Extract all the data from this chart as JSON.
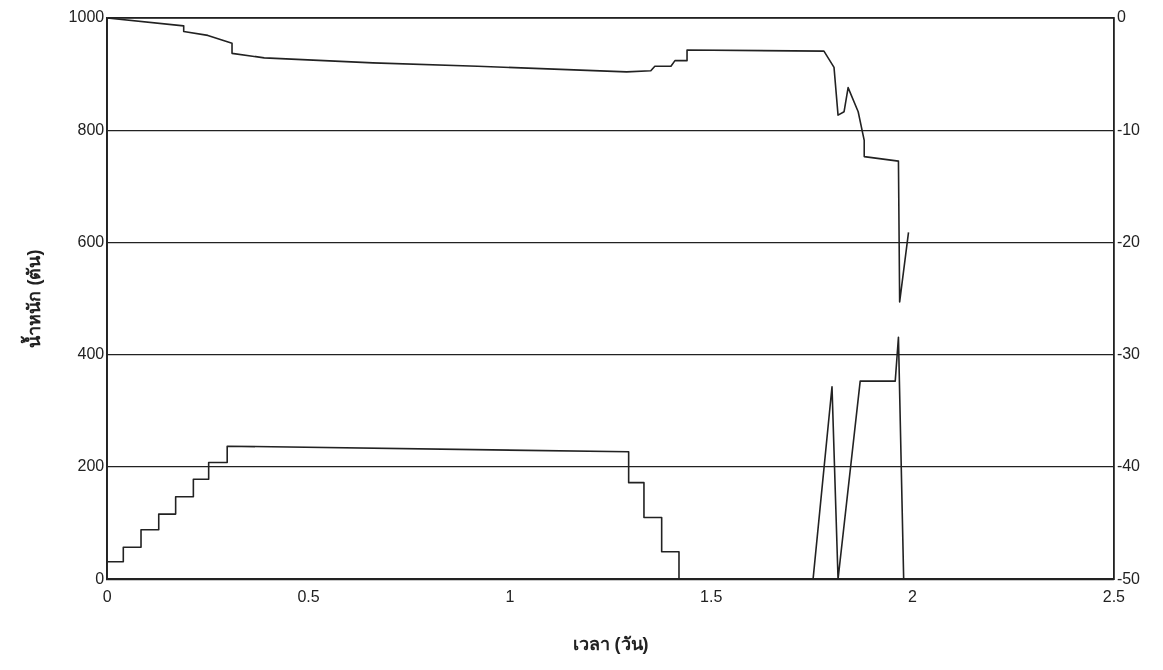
{
  "chart_data": {
    "type": "line",
    "xlabel": "เวลา (วัน)",
    "ylabel": "น้ำหนัก (ตัน)",
    "xlim": [
      0,
      2.5
    ],
    "xticks": [
      0,
      0.5,
      1,
      1.5,
      2,
      2.5
    ],
    "ylim": [
      0,
      1000
    ],
    "yticks": [
      0,
      200,
      400,
      600,
      800,
      1000
    ],
    "y2lim": [
      -50,
      0
    ],
    "y2ticks": [
      -50,
      -40,
      -30,
      -20,
      -10,
      0
    ],
    "grid": "y",
    "legend": false,
    "marker": "none",
    "line_style": "solid",
    "series": [
      {
        "color": "#222222",
        "x": [
          0,
          0.19,
          0.19,
          0.25,
          0.31,
          0.31,
          0.39,
          0.66,
          0.92,
          1.29,
          1.35,
          1.36,
          1.38,
          1.4,
          1.41,
          1.44,
          1.44,
          1.78,
          1.805,
          1.815,
          1.83,
          1.84,
          1.865,
          1.88,
          1.88,
          1.965,
          1.968,
          1.99
        ],
        "values": [
          1000,
          986,
          976,
          969,
          955,
          937,
          929,
          920,
          914,
          904,
          906,
          914,
          914,
          914,
          924,
          924,
          943,
          941,
          912,
          827,
          833,
          876,
          833,
          782,
          753,
          745,
          494,
          618
        ]
      },
      {
        "color": "#222222",
        "x": [
          0,
          0.04,
          0.04,
          0.084,
          0.084,
          0.128,
          0.128,
          0.17,
          0.17,
          0.214,
          0.214,
          0.252,
          0.252,
          0.298,
          0.298,
          1.295,
          1.295,
          1.333,
          1.333,
          1.377,
          1.377,
          1.42,
          1.42,
          1.753,
          1.8,
          1.815,
          1.87,
          1.957,
          1.965,
          1.978
        ],
        "values": [
          31,
          31,
          57,
          57,
          88,
          88,
          116,
          116,
          147,
          147,
          178,
          178,
          208,
          208,
          237,
          227,
          172,
          172,
          110,
          110,
          49,
          49,
          0,
          0,
          343,
          0,
          353,
          353,
          431,
          0
        ]
      }
    ]
  }
}
